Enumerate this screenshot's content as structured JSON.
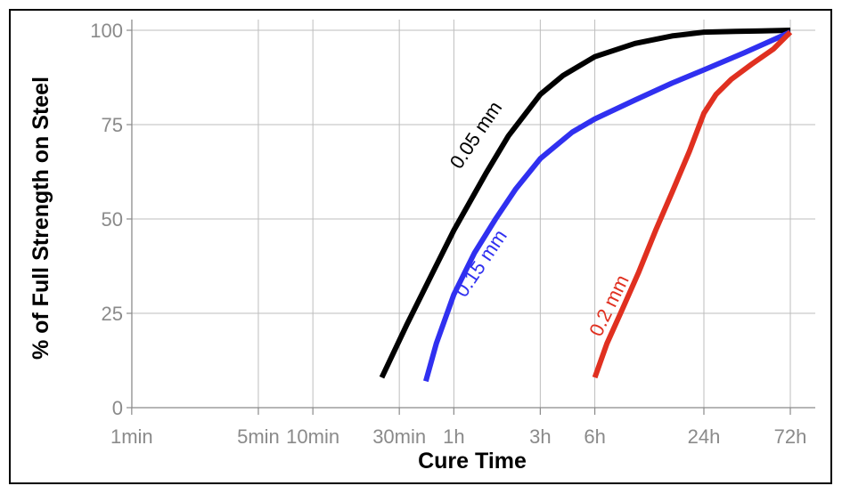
{
  "chart_data": {
    "type": "line",
    "xlabel": "Cure Time",
    "ylabel": "% of Full Strength on Steel",
    "x_scale": "log",
    "x_unit": "hours",
    "xlim": [
      0.0167,
      72
    ],
    "ylim": [
      0,
      100
    ],
    "grid": true,
    "x_ticks": [
      {
        "label": "1min",
        "value": 0.01667
      },
      {
        "label": "5min",
        "value": 0.08333
      },
      {
        "label": "10min",
        "value": 0.16667
      },
      {
        "label": "30min",
        "value": 0.5
      },
      {
        "label": "1h",
        "value": 1
      },
      {
        "label": "3h",
        "value": 3
      },
      {
        "label": "6h",
        "value": 6
      },
      {
        "label": "24h",
        "value": 24
      },
      {
        "label": "72h",
        "value": 72
      }
    ],
    "y_ticks": [
      {
        "label": "0",
        "value": 0
      },
      {
        "label": "25",
        "value": 25
      },
      {
        "label": "50",
        "value": 50
      },
      {
        "label": "75",
        "value": 75
      },
      {
        "label": "100",
        "value": 100
      }
    ],
    "series": [
      {
        "name": "0.05 mm",
        "color": "#000000",
        "x": [
          0.4,
          0.55,
          0.75,
          1.0,
          1.5,
          2.0,
          3.0,
          4.0,
          6.0,
          10.0,
          16.0,
          24.0,
          36.0,
          50.0,
          72.0
        ],
        "y": [
          8,
          22,
          35,
          47,
          62,
          72,
          83,
          88,
          93,
          96.5,
          98.5,
          99.5,
          99.7,
          99.8,
          100
        ]
      },
      {
        "name": "0.15 mm",
        "color": "#3030f0",
        "x": [
          0.7,
          0.8,
          1.0,
          1.3,
          1.7,
          2.2,
          3.0,
          4.5,
          6.0,
          10.0,
          16.0,
          24.0,
          40.0,
          72.0
        ],
        "y": [
          7,
          17,
          30,
          41,
          50,
          58,
          66,
          73,
          76.5,
          81.5,
          86,
          89.5,
          94,
          99.5
        ]
      },
      {
        "name": "0.2 mm",
        "color": "#e03020",
        "x": [
          6.0,
          7.0,
          8.5,
          10.5,
          13.0,
          16.0,
          20.0,
          24.0,
          28.0,
          34.0,
          44.0,
          58.0,
          72.0
        ],
        "y": [
          8,
          17,
          26,
          36,
          47,
          57,
          68,
          78,
          83,
          87,
          91,
          95,
          99.5
        ]
      }
    ]
  }
}
